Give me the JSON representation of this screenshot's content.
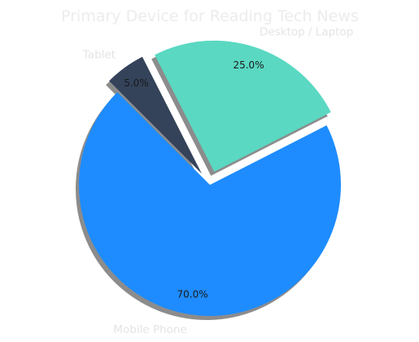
{
  "chart_data": {
    "type": "pie",
    "title": "Primary Device for Reading Tech News",
    "categories": [
      "Mobile Phone",
      "Desktop / Laptop",
      "Tablet"
    ],
    "values": [
      70.0,
      25.0,
      5.0
    ],
    "value_labels": [
      "70.0%",
      "25.0%",
      "5.0%"
    ],
    "colors": [
      "#1e8cff",
      "#5ad8c2",
      "#34435a"
    ],
    "exploded": [
      false,
      true,
      true
    ],
    "shadow": true,
    "start_angle": 135,
    "direction": "counterclockwise",
    "legend": "none"
  }
}
